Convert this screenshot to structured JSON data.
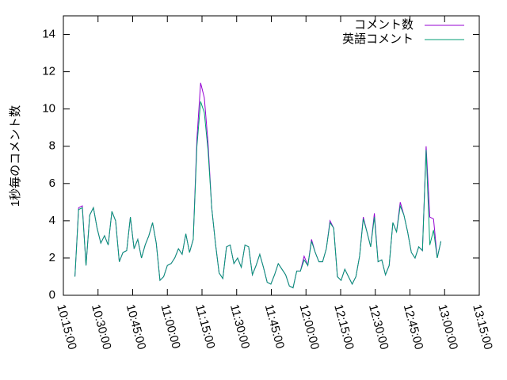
{
  "chart_data": {
    "type": "line",
    "ylabel": "1秒毎のコメント数",
    "x": [
      "10:20:00",
      "10:21:36",
      "10:23:12",
      "10:24:48",
      "10:26:24",
      "10:28:00",
      "10:29:36",
      "10:31:12",
      "10:32:48",
      "10:34:24",
      "10:36:00",
      "10:37:36",
      "10:39:12",
      "10:40:48",
      "10:42:24",
      "10:44:00",
      "10:45:36",
      "10:47:12",
      "10:48:48",
      "10:50:24",
      "10:52:00",
      "10:53:36",
      "10:55:12",
      "10:56:48",
      "10:58:24",
      "11:00:00",
      "11:01:36",
      "11:03:12",
      "11:04:48",
      "11:06:24",
      "11:08:00",
      "11:09:36",
      "11:11:12",
      "11:12:48",
      "11:14:24",
      "11:16:00",
      "11:17:36",
      "11:19:12",
      "11:20:48",
      "11:22:24",
      "11:24:00",
      "11:25:36",
      "11:27:12",
      "11:28:48",
      "11:30:24",
      "11:32:00",
      "11:33:36",
      "11:35:12",
      "11:36:48",
      "11:38:24",
      "11:40:00",
      "11:41:36",
      "11:43:12",
      "11:44:48",
      "11:46:24",
      "11:48:00",
      "11:49:36",
      "11:51:12",
      "11:52:48",
      "11:54:24",
      "11:56:00",
      "11:57:36",
      "11:59:12",
      "12:00:48",
      "12:02:24",
      "12:04:00",
      "12:05:36",
      "12:07:12",
      "12:08:48",
      "12:10:24",
      "12:12:00",
      "12:13:36",
      "12:15:12",
      "12:16:48",
      "12:18:24",
      "12:20:00",
      "12:21:36",
      "12:23:12",
      "12:24:48",
      "12:26:24",
      "12:28:00",
      "12:29:36",
      "12:31:12",
      "12:32:48",
      "12:34:24",
      "12:36:00",
      "12:37:36",
      "12:39:12",
      "12:40:48",
      "12:42:24",
      "12:44:00",
      "12:45:36",
      "12:47:12",
      "12:48:48",
      "12:50:24",
      "12:52:00",
      "12:53:36",
      "12:55:12",
      "12:56:48",
      "12:58:24"
    ],
    "series": [
      {
        "name": "コメント数",
        "color": "#9400d3",
        "values": [
          1.0,
          4.7,
          4.8,
          1.6,
          4.3,
          4.7,
          3.6,
          2.8,
          3.2,
          2.7,
          4.5,
          4.0,
          1.8,
          2.3,
          2.4,
          4.2,
          2.5,
          3.0,
          2.0,
          2.7,
          3.2,
          3.9,
          2.8,
          0.8,
          1.0,
          1.6,
          1.7,
          2.0,
          2.5,
          2.2,
          3.3,
          2.3,
          3.0,
          8.4,
          11.4,
          10.6,
          8.2,
          4.7,
          2.8,
          1.2,
          0.9,
          2.6,
          2.7,
          1.7,
          2.0,
          1.5,
          2.7,
          2.6,
          1.1,
          1.6,
          2.2,
          1.5,
          0.7,
          0.6,
          1.1,
          1.7,
          1.4,
          1.1,
          0.5,
          0.4,
          1.3,
          1.3,
          2.1,
          1.6,
          3.0,
          2.3,
          1.8,
          1.8,
          2.5,
          4.0,
          3.6,
          1.0,
          0.8,
          1.4,
          1.0,
          0.6,
          1.0,
          2.1,
          4.2,
          3.4,
          2.6,
          4.4,
          1.8,
          1.9,
          1.1,
          1.6,
          3.9,
          3.4,
          5.0,
          4.3,
          3.4,
          2.3,
          2.0,
          2.6,
          2.4,
          8.0,
          4.2,
          4.1,
          2.0,
          2.9
        ]
      },
      {
        "name": "英語コメント",
        "color": "#009e73",
        "values": [
          1.0,
          4.6,
          4.7,
          1.6,
          4.3,
          4.7,
          3.6,
          2.8,
          3.2,
          2.7,
          4.5,
          4.0,
          1.8,
          2.3,
          2.4,
          4.2,
          2.5,
          3.0,
          2.0,
          2.7,
          3.2,
          3.9,
          2.8,
          0.8,
          1.0,
          1.6,
          1.7,
          2.0,
          2.5,
          2.2,
          3.3,
          2.3,
          3.0,
          8.0,
          10.4,
          9.8,
          7.8,
          4.7,
          2.8,
          1.2,
          0.9,
          2.6,
          2.7,
          1.7,
          2.0,
          1.5,
          2.7,
          2.6,
          1.1,
          1.6,
          2.2,
          1.5,
          0.7,
          0.6,
          1.1,
          1.7,
          1.4,
          1.1,
          0.5,
          0.4,
          1.3,
          1.3,
          1.9,
          1.6,
          2.9,
          2.3,
          1.8,
          1.8,
          2.5,
          3.9,
          3.6,
          1.0,
          0.8,
          1.4,
          1.0,
          0.6,
          1.0,
          2.1,
          4.1,
          3.4,
          2.6,
          4.2,
          1.8,
          1.9,
          1.1,
          1.6,
          3.9,
          3.4,
          4.8,
          4.3,
          3.4,
          2.3,
          2.0,
          2.6,
          2.4,
          7.8,
          2.7,
          3.5,
          2.0,
          2.9
        ]
      }
    ],
    "xlim": [
      "10:15:00",
      "13:15:00"
    ],
    "xticks": [
      "10:15:00",
      "10:30:00",
      "10:45:00",
      "11:00:00",
      "11:15:00",
      "11:30:00",
      "11:45:00",
      "12:00:00",
      "12:15:00",
      "12:30:00",
      "12:45:00",
      "13:00:00",
      "13:15:00"
    ],
    "ylim": [
      0,
      15
    ],
    "yticks": [
      0,
      2,
      4,
      6,
      8,
      10,
      12,
      14
    ],
    "legend": "top-right"
  }
}
